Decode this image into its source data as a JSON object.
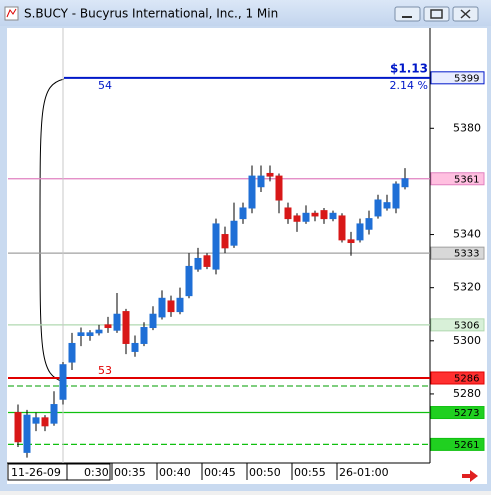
{
  "window_title": "S.BUCY - Bucyrus International, Inc., 1 Min",
  "chart_data": {
    "type": "candlestick",
    "categories": [
      null,
      null,
      null,
      null,
      null,
      null,
      null,
      null,
      null,
      null,
      "00:35",
      null,
      null,
      null,
      null,
      "00:40",
      null,
      null,
      null,
      null,
      "00:45",
      null,
      null,
      null,
      null,
      "00:50",
      null,
      null,
      null,
      null,
      "00:55",
      null,
      null,
      null,
      null,
      "26-01:00",
      null,
      null,
      null,
      null,
      null,
      null,
      null,
      null
    ],
    "cursor": {
      "index": 5,
      "date": "11-26-09",
      "time": "0:30"
    },
    "open": [
      5273,
      5258,
      5269,
      5271,
      5269,
      5278,
      5292,
      5302,
      5302,
      5303,
      5306,
      5304,
      5311,
      5296,
      5299,
      5305,
      5309,
      5315,
      5311,
      5317,
      5327,
      5332,
      5327,
      5340,
      5336,
      5346,
      5350,
      5358,
      5363,
      5362,
      5350,
      5347,
      5345,
      5348,
      5349,
      5346,
      5347,
      5338,
      5338,
      5342,
      5347,
      5350,
      5350,
      5358
    ],
    "high": [
      5276,
      5274,
      5273,
      5272,
      5281,
      5292,
      5303,
      5305,
      5304,
      5306,
      5309,
      5318,
      5312,
      5302,
      5307,
      5313,
      5319,
      5317,
      5320,
      5333,
      5335,
      5333,
      5346,
      5343,
      5352,
      5352,
      5366,
      5366,
      5366,
      5363,
      5352,
      5348,
      5351,
      5349,
      5350,
      5349,
      5348,
      5341,
      5346,
      5349,
      5355,
      5355,
      5360,
      5365
    ],
    "low": [
      5260,
      5256,
      5266,
      5266,
      5268,
      5276,
      5289,
      5298,
      5300,
      5302,
      5303,
      5303,
      5295,
      5294,
      5298,
      5304,
      5308,
      5309,
      5310,
      5316,
      5326,
      5327,
      5325,
      5333,
      5335,
      5344,
      5348,
      5356,
      5360,
      5348,
      5344,
      5341,
      5344,
      5345,
      5344,
      5345,
      5337,
      5332,
      5337,
      5340,
      5346,
      5349,
      5348,
      5357
    ],
    "close": [
      5262,
      5272,
      5271,
      5268,
      5276,
      5291,
      5299,
      5303,
      5303,
      5304,
      5305,
      5310,
      5299,
      5299,
      5305,
      5310,
      5316,
      5311,
      5316,
      5328,
      5331,
      5328,
      5344,
      5335,
      5345,
      5350,
      5362,
      5362,
      5362,
      5353,
      5346,
      5345,
      5348,
      5347,
      5346,
      5348,
      5338,
      5337,
      5344,
      5346,
      5353,
      5352,
      5359,
      5361
    ],
    "up_color": "#1f6fd6",
    "down_color": "#d81818",
    "ylim": [
      5254,
      5417
    ],
    "yticks": [
      5280,
      5300,
      5320,
      5340,
      5380
    ],
    "lines": [
      {
        "value": 5399,
        "color": "#0018c8",
        "box": true,
        "box_fill": "#e8ecff"
      },
      {
        "value": 5361,
        "color": "#e080c0",
        "box": true,
        "box_fill": "#ffc0e0"
      },
      {
        "value": 5333,
        "color": "#a0a0a0",
        "box": true,
        "box_fill": "#d8d8d8"
      },
      {
        "value": 5306,
        "color": "#b0d8b0",
        "box": true,
        "box_fill": "#d8f0d8"
      },
      {
        "value": 5286,
        "color": "#e00000",
        "box": true,
        "box_fill": "#ff3030"
      },
      {
        "value": 5283,
        "color": "#30b030",
        "dashed": true,
        "box": false
      },
      {
        "value": 5273,
        "color": "#10c010",
        "box": true,
        "box_fill": "#20d020"
      },
      {
        "value": 5261,
        "color": "#10c010",
        "dashed": true,
        "box": true,
        "box_fill": "#20d020"
      }
    ],
    "measure": {
      "top_label": "54",
      "bottom_label": "53",
      "change": "$1.13",
      "percent": "2.14 %"
    }
  }
}
